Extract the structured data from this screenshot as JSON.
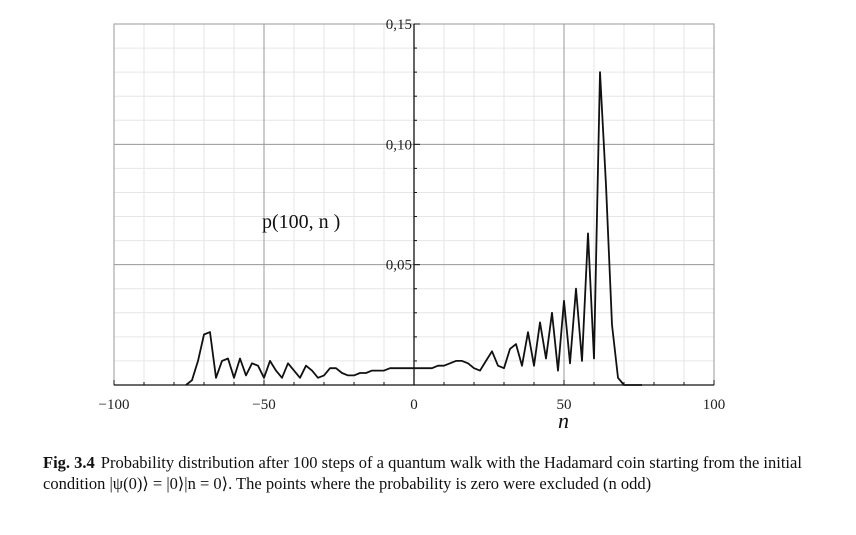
{
  "chart_data": {
    "type": "line",
    "title": "",
    "ylabel": "p(100, n )",
    "xlabel": "n",
    "xlim": [
      -100,
      100
    ],
    "ylim": [
      0,
      0.15
    ],
    "xticks": [
      -100,
      -50,
      0,
      50,
      100
    ],
    "xtick_labels": [
      "−100",
      "−50",
      "0",
      "50",
      "100"
    ],
    "yticks": [
      0.05,
      0.1,
      0.15
    ],
    "ytick_labels": [
      "0,05",
      "0,10",
      "0,15"
    ],
    "grid": true,
    "series": [
      {
        "x": [
          -76,
          -74,
          -72,
          -70,
          -68,
          -66,
          -64,
          -62,
          -60,
          -58,
          -56,
          -54,
          -52,
          -50,
          -48,
          -46,
          -44,
          -42,
          -40,
          -38,
          -36,
          -34,
          -32,
          -30,
          -28,
          -26,
          -24,
          -22,
          -20,
          -18,
          -16,
          -14,
          -12,
          -10,
          -8,
          -6,
          -4,
          -2,
          0,
          2,
          4,
          6,
          8,
          10,
          12,
          14,
          16,
          18,
          20,
          22,
          24,
          26,
          28,
          30,
          32,
          34,
          36,
          38,
          40,
          42,
          44,
          46,
          48,
          50,
          52,
          54,
          56,
          58,
          60,
          62,
          64,
          66,
          68,
          70,
          72,
          74,
          76
        ],
        "y": [
          0.0,
          0.002,
          0.01,
          0.021,
          0.022,
          0.003,
          0.01,
          0.011,
          0.003,
          0.011,
          0.004,
          0.009,
          0.008,
          0.003,
          0.01,
          0.006,
          0.003,
          0.009,
          0.006,
          0.003,
          0.008,
          0.006,
          0.003,
          0.004,
          0.007,
          0.007,
          0.005,
          0.004,
          0.004,
          0.005,
          0.005,
          0.006,
          0.006,
          0.006,
          0.007,
          0.007,
          0.007,
          0.007,
          0.007,
          0.007,
          0.007,
          0.007,
          0.008,
          0.008,
          0.009,
          0.01,
          0.01,
          0.009,
          0.007,
          0.006,
          0.01,
          0.014,
          0.008,
          0.007,
          0.015,
          0.017,
          0.008,
          0.022,
          0.008,
          0.026,
          0.011,
          0.03,
          0.006,
          0.035,
          0.009,
          0.04,
          0.01,
          0.063,
          0.011,
          0.13,
          0.083,
          0.025,
          0.003,
          0.0,
          0.0,
          0.0,
          0.0
        ]
      }
    ]
  },
  "caption": {
    "label": "Fig. 3.4",
    "text": "Probability distribution after 100 steps of a quantum walk with the Hadamard coin starting from the initial condition |ψ(0)⟩ = |0⟩|n = 0⟩. The points where the probability is zero were excluded (n odd)"
  }
}
